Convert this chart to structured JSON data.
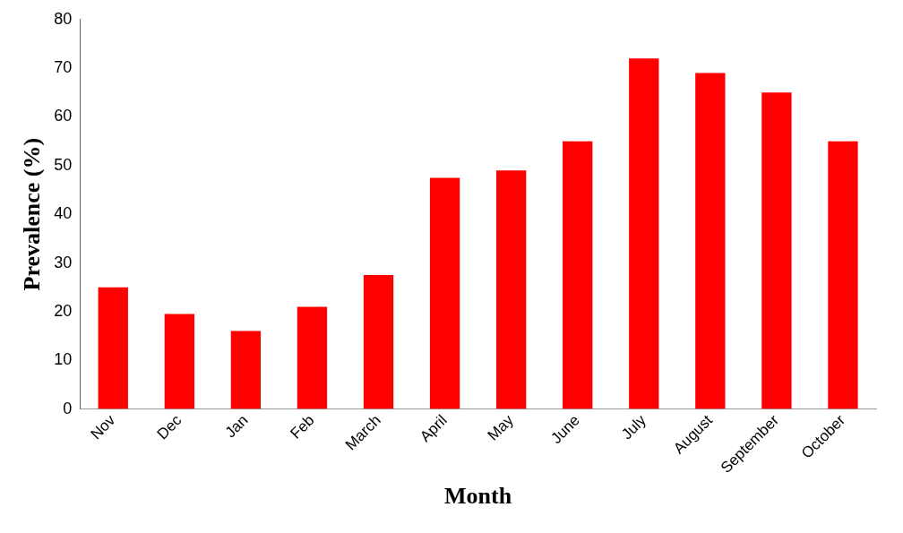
{
  "chart_data": {
    "type": "bar",
    "xlabel": "Month",
    "ylabel": "Prevalence (%)",
    "categories": [
      "Nov",
      "Dec",
      "Jan",
      "Feb",
      "March",
      "April",
      "May",
      "June",
      "July",
      "August",
      "September",
      "October"
    ],
    "values": [
      25,
      19.5,
      16,
      21,
      27.5,
      47.5,
      49,
      55,
      72,
      69,
      65,
      55
    ],
    "color": "#ff0000",
    "ylim": [
      0,
      80
    ],
    "yticks": [
      0,
      10,
      20,
      30,
      40,
      50,
      60,
      70,
      80
    ],
    "grid": false,
    "legend": false
  }
}
